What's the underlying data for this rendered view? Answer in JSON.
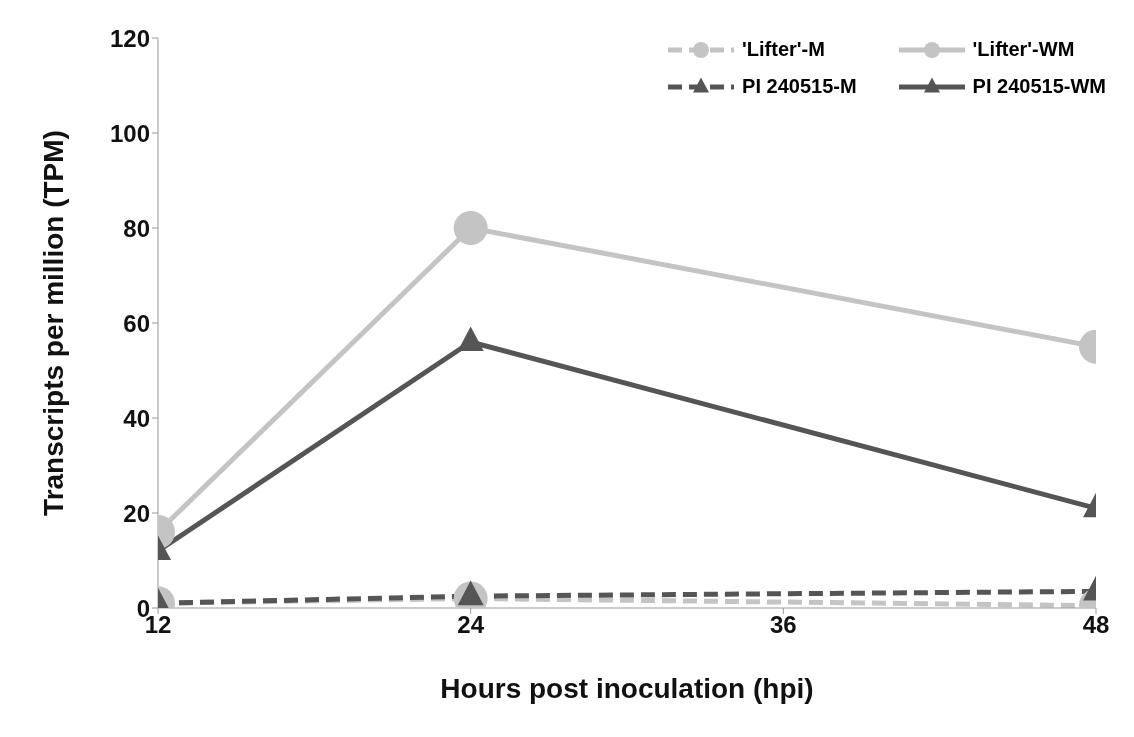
{
  "chart_data": {
    "type": "line",
    "xlabel": "Hours post inoculation (hpi)",
    "ylabel": "Transcripts per million (TPM)",
    "x": [
      12,
      24,
      48
    ],
    "series": [
      {
        "name": "'Lifter'-M",
        "color": "#c4c4c4",
        "values": [
          1,
          2,
          0.5
        ],
        "marker": "circle",
        "line_style": "dashed"
      },
      {
        "name": "'Lifter'-WM",
        "color": "#c4c4c4",
        "values": [
          16,
          80,
          55
        ],
        "marker": "circle",
        "line_style": "solid"
      },
      {
        "name": "PI 240515-M",
        "color": "#555555",
        "values": [
          1,
          2.5,
          3.5
        ],
        "marker": "triangle",
        "line_style": "dashed"
      },
      {
        "name": "PI 240515-WM",
        "color": "#555555",
        "values": [
          12,
          56,
          21
        ],
        "marker": "triangle",
        "line_style": "solid"
      }
    ],
    "xlim": [
      12,
      48
    ],
    "xticks": [
      12,
      24,
      36,
      48
    ],
    "ylim": [
      0,
      120
    ],
    "yticks": [
      0,
      20,
      40,
      60,
      80,
      100,
      120
    ],
    "grid": false,
    "legend": "top right"
  }
}
